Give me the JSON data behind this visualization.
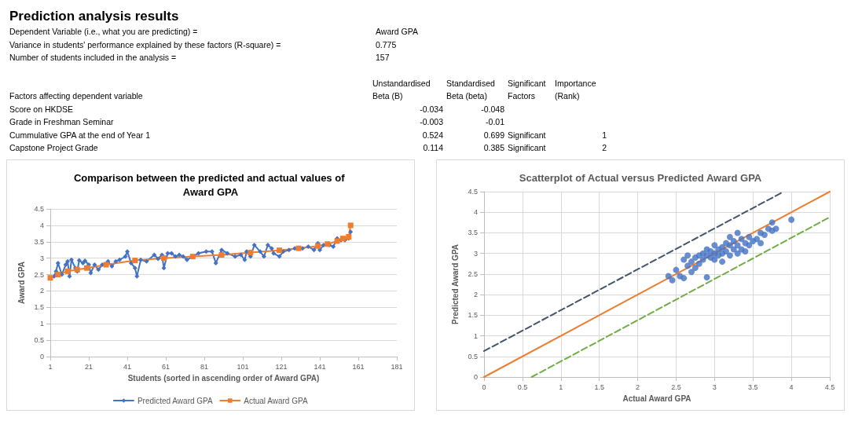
{
  "chart_data": [
    {
      "type": "other",
      "title": "Prediction analysis results",
      "annotations": [
        "Dependent Variable (i.e., what you are predicting) =",
        "Award GPA",
        "Variance in students' performance explained by these factors (R-square) =",
        "0.775",
        "Number of students included in the analysis =",
        "157"
      ],
      "xlabel": "Factors affecting dependent variable",
      "categories": [
        "Score on HKDSE",
        "Grade in Freshman Seminar",
        "Cummulative GPA at the end of Year 1",
        "Capstone Project Grade"
      ],
      "series": [
        {
          "name": "Unstandardised Beta (B)",
          "values": [
            -0.034,
            -0.003,
            0.524,
            0.114
          ],
          "value_labels": [
            "-0.034",
            "-0.003",
            "0.524",
            "0.114"
          ]
        },
        {
          "name": "Standardised Beta (beta)",
          "values": [
            -0.048,
            -0.01,
            0.699,
            0.385
          ],
          "value_labels": [
            "-0.048",
            "-0.01",
            "0.699",
            "0.385"
          ]
        },
        {
          "name": "Significant Factors",
          "values": [
            null,
            null,
            null,
            null
          ],
          "value_labels": [
            null,
            null,
            "Significant",
            "Significant"
          ]
        },
        {
          "name": "Importance (Rank)",
          "values": [
            null,
            null,
            1,
            2
          ],
          "value_labels": [
            null,
            null,
            "1",
            "2"
          ]
        }
      ]
    },
    {
      "type": "line",
      "title": "Comparison between the predicted and actual values of Award GPA",
      "xlabel": "Students (sorted in ascending order of Award GPA)",
      "ylabel": "Award GPA",
      "xlim": [
        1,
        181
      ],
      "xticks": [
        1,
        21,
        41,
        61,
        81,
        101,
        121,
        141,
        161,
        181
      ],
      "ylim": [
        0,
        4.5
      ],
      "yticks": [
        0,
        0.5,
        1,
        1.5,
        2,
        2.5,
        3,
        3.5,
        4,
        4.5
      ],
      "grid": "y",
      "legend": "bottom",
      "marker": "diamond",
      "series": [
        {
          "name": "Predicted Award GPA",
          "color": "#4472c4",
          "x": [
            1,
            3,
            4,
            5,
            7,
            9,
            10,
            11,
            12,
            14,
            15,
            16,
            18,
            19,
            21,
            22,
            24,
            26,
            28,
            31,
            33,
            35,
            37,
            40,
            41,
            43,
            45,
            46,
            48,
            51,
            55,
            57,
            59,
            60,
            62,
            64,
            66,
            68,
            70,
            72,
            75,
            78,
            82,
            85,
            87,
            90,
            93,
            97,
            100,
            102,
            103,
            105,
            107,
            110,
            112,
            114,
            116,
            117,
            120,
            122,
            125,
            128,
            132,
            135,
            138,
            140,
            141,
            143,
            146,
            148,
            150,
            152,
            154,
            156,
            157
          ],
          "values": [
            2.4,
            2.45,
            2.6,
            2.85,
            2.5,
            2.8,
            2.9,
            2.45,
            2.95,
            2.7,
            2.6,
            2.93,
            2.85,
            2.92,
            2.8,
            2.55,
            2.8,
            2.65,
            2.8,
            2.9,
            2.75,
            2.9,
            2.95,
            3.05,
            3.2,
            2.85,
            2.7,
            2.45,
            2.95,
            2.9,
            3.1,
            2.98,
            3.1,
            2.7,
            3.15,
            3.15,
            3.05,
            3.1,
            3.05,
            2.95,
            3.05,
            3.15,
            3.2,
            3.2,
            2.85,
            3.25,
            3.15,
            3.05,
            3.1,
            2.95,
            3.2,
            3.05,
            3.4,
            3.2,
            3.05,
            3.4,
            3.3,
            3.15,
            3.05,
            3.2,
            3.25,
            3.3,
            3.3,
            3.35,
            3.25,
            3.45,
            3.25,
            3.4,
            3.4,
            3.35,
            3.6,
            3.55,
            3.55,
            3.6,
            3.8
          ]
        },
        {
          "name": "Actual Award GPA",
          "color": "#ed7d31",
          "marker": "square",
          "x": [
            1,
            5,
            10,
            15,
            20,
            30,
            45,
            60,
            75,
            90,
            105,
            120,
            130,
            140,
            145,
            150,
            153,
            156,
            157
          ],
          "values": [
            2.4,
            2.5,
            2.6,
            2.65,
            2.7,
            2.8,
            2.93,
            3.0,
            3.05,
            3.1,
            3.17,
            3.24,
            3.3,
            3.37,
            3.43,
            3.52,
            3.6,
            3.65,
            4.0
          ]
        }
      ]
    },
    {
      "type": "scatter",
      "title": "Scatterplot of Actual versus Predicted Award GPA",
      "xlabel": "Actual Award GPA",
      "ylabel": "Predicted Award GPA",
      "xlim": [
        0,
        4.5
      ],
      "xticks": [
        0,
        0.5,
        1,
        1.5,
        2,
        2.5,
        3,
        3.5,
        4,
        4.5
      ],
      "ylim": [
        0,
        4.5
      ],
      "yticks": [
        0,
        0.5,
        1,
        1.5,
        2,
        2.5,
        3,
        3.5,
        4,
        4.5
      ],
      "grid": true,
      "marker": "circle",
      "series": [
        {
          "color": "#4472c4",
          "x": [
            2.4,
            2.45,
            2.5,
            2.55,
            2.6,
            2.6,
            2.65,
            2.65,
            2.7,
            2.7,
            2.75,
            2.75,
            2.8,
            2.8,
            2.85,
            2.85,
            2.9,
            2.9,
            2.9,
            2.95,
            2.95,
            3.0,
            3.0,
            3.0,
            3.05,
            3.05,
            3.1,
            3.1,
            3.1,
            3.15,
            3.15,
            3.2,
            3.2,
            3.2,
            3.25,
            3.25,
            3.3,
            3.3,
            3.3,
            3.35,
            3.35,
            3.4,
            3.4,
            3.45,
            3.45,
            3.5,
            3.55,
            3.6,
            3.6,
            3.65,
            3.7,
            3.75,
            3.75,
            3.8,
            4.0
          ],
          "values": [
            2.45,
            2.35,
            2.6,
            2.45,
            2.85,
            2.4,
            2.95,
            2.7,
            2.8,
            2.55,
            2.9,
            2.65,
            2.95,
            2.75,
            2.85,
            3.0,
            2.95,
            2.42,
            3.1,
            3.05,
            2.9,
            3.0,
            3.2,
            2.85,
            3.1,
            2.95,
            3.15,
            3.0,
            2.8,
            3.25,
            3.05,
            3.2,
            2.95,
            3.4,
            3.1,
            3.3,
            3.2,
            3.5,
            3.0,
            3.35,
            3.1,
            3.25,
            3.05,
            3.4,
            3.2,
            3.3,
            3.35,
            3.5,
            3.25,
            3.45,
            3.6,
            3.75,
            3.55,
            3.6,
            3.82
          ]
        },
        {
          "type": "line",
          "marker": "none",
          "color": "#ed7d31",
          "line_style": "solid",
          "x": [
            0,
            4.5
          ],
          "values": [
            0,
            4.5
          ]
        },
        {
          "type": "line",
          "marker": "none",
          "color": "#44546a",
          "line_style": "dashed",
          "x": [
            0,
            3.9
          ],
          "values": [
            0.63,
            4.5
          ]
        },
        {
          "type": "line",
          "marker": "none",
          "color": "#70ad47",
          "line_style": "dashed",
          "x": [
            0.62,
            4.5
          ],
          "values": [
            0,
            3.88
          ]
        }
      ]
    }
  ]
}
